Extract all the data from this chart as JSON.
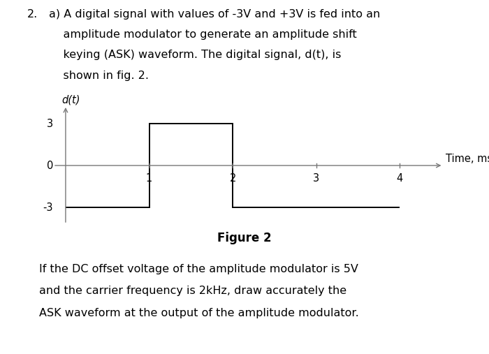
{
  "question_number": "2.",
  "title_line1": "a) A digital signal with values of -3V and +3V is fed into an",
  "title_line2": "    amplitude modulator to generate an amplitude shift",
  "title_line3": "    keying (ASK) waveform. The digital signal, d(t), is",
  "title_line4": "    shown in fig. 2.",
  "ylabel": "d(t)",
  "xlabel": "Time, ms",
  "figure_label": "Figure 2",
  "bottom_line1": "If the DC offset voltage of the amplitude modulator is 5V",
  "bottom_line2": "and the carrier frequency is 2kHz, draw accurately the",
  "bottom_line3": "ASK waveform at the output of the amplitude modulator.",
  "signal_x": [
    0,
    1,
    1,
    2,
    2,
    4.0
  ],
  "signal_y": [
    -3,
    -3,
    3,
    3,
    -3,
    -3
  ],
  "yticks": [
    -3,
    0,
    3
  ],
  "xticks": [
    1,
    2,
    3,
    4
  ],
  "xlim": [
    -0.2,
    4.6
  ],
  "ylim": [
    -4.5,
    4.5
  ],
  "line_color": "#000000",
  "axis_color": "#777777",
  "background_color": "#ffffff",
  "signal_linewidth": 1.4,
  "axis_linewidth": 1.0,
  "font_size_title": 11.5,
  "font_size_labels": 10.5,
  "font_size_ticks": 10.5,
  "font_size_figure_label": 12,
  "font_size_bottom": 11.5
}
